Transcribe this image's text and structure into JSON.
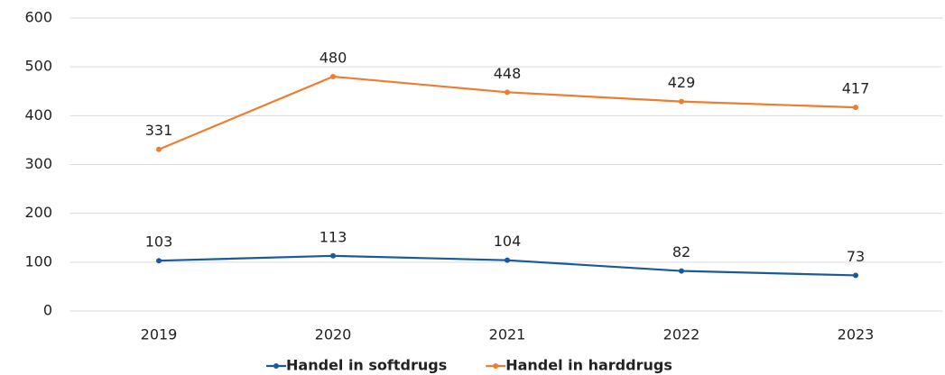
{
  "chart_data": {
    "type": "line",
    "categories": [
      "2019",
      "2020",
      "2021",
      "2022",
      "2023"
    ],
    "series": [
      {
        "name": "Handel in softdrugs",
        "color": "#1a5a9a",
        "values": [
          103,
          113,
          104,
          82,
          73
        ]
      },
      {
        "name": "Handel in harddrugs",
        "color": "#ed7d31",
        "values": [
          331,
          480,
          448,
          429,
          417
        ]
      }
    ],
    "ylim": [
      0,
      600
    ],
    "yticks": [
      0,
      100,
      200,
      300,
      400,
      500,
      600
    ],
    "grid": true,
    "legend": "bottom"
  }
}
